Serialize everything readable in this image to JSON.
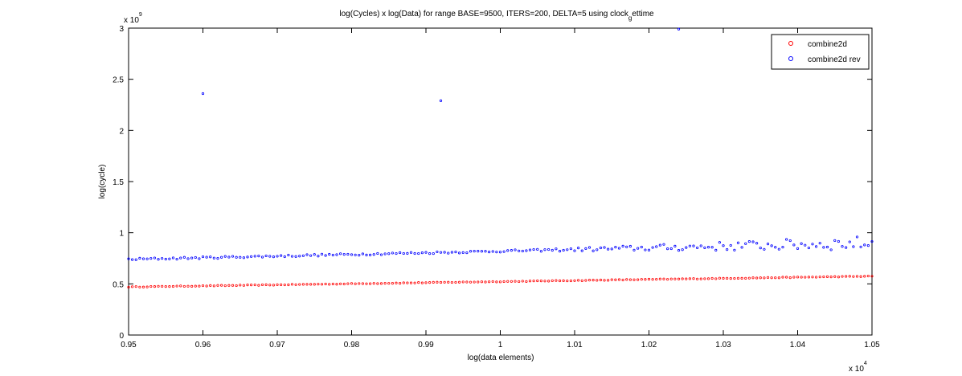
{
  "chart_data": {
    "type": "scatter",
    "title_main": "log(Cycles) x log(Data) for range BASE=9500, ITERS=200, DELTA=5 using clock",
    "title_sub": "g",
    "title_tail": "ettime",
    "xlabel": "log(data elements)",
    "ylabel": "log(cycle)",
    "x_exponent_base": "x 10",
    "x_exponent_power": "4",
    "y_exponent_base": "x 10",
    "y_exponent_power": "9",
    "xlim": [
      0.95,
      1.05
    ],
    "ylim": [
      0,
      3
    ],
    "x_ticks": [
      0.95,
      0.96,
      0.97,
      0.98,
      0.99,
      1,
      1.01,
      1.02,
      1.03,
      1.04,
      1.05
    ],
    "x_tick_labels": [
      "0.95",
      "0.96",
      "0.97",
      "0.98",
      "0.99",
      "1",
      "1.01",
      "1.02",
      "1.03",
      "1.04",
      "1.05"
    ],
    "y_ticks": [
      0,
      0.5,
      1,
      1.5,
      2,
      2.5,
      3
    ],
    "y_tick_labels": [
      "0",
      "0.5",
      "1",
      "1.5",
      "2",
      "2.5",
      "3"
    ],
    "grid": false,
    "legend_position": "top-right",
    "series": [
      {
        "name": "combine2d",
        "color": "#ff0000",
        "x_start": 0.95,
        "x_step": 0.0005,
        "y_start": 0.47,
        "y_end": 0.575,
        "outliers": []
      },
      {
        "name": "combine2d rev",
        "color": "#0000ff",
        "x_start": 0.95,
        "x_step": 0.0005,
        "y_start": 0.74,
        "y_end": 0.9,
        "outliers": [
          {
            "x": 0.96,
            "y": 2.36
          },
          {
            "x": 0.992,
            "y": 2.29
          },
          {
            "x": 1.024,
            "y": 2.99
          }
        ]
      }
    ]
  }
}
